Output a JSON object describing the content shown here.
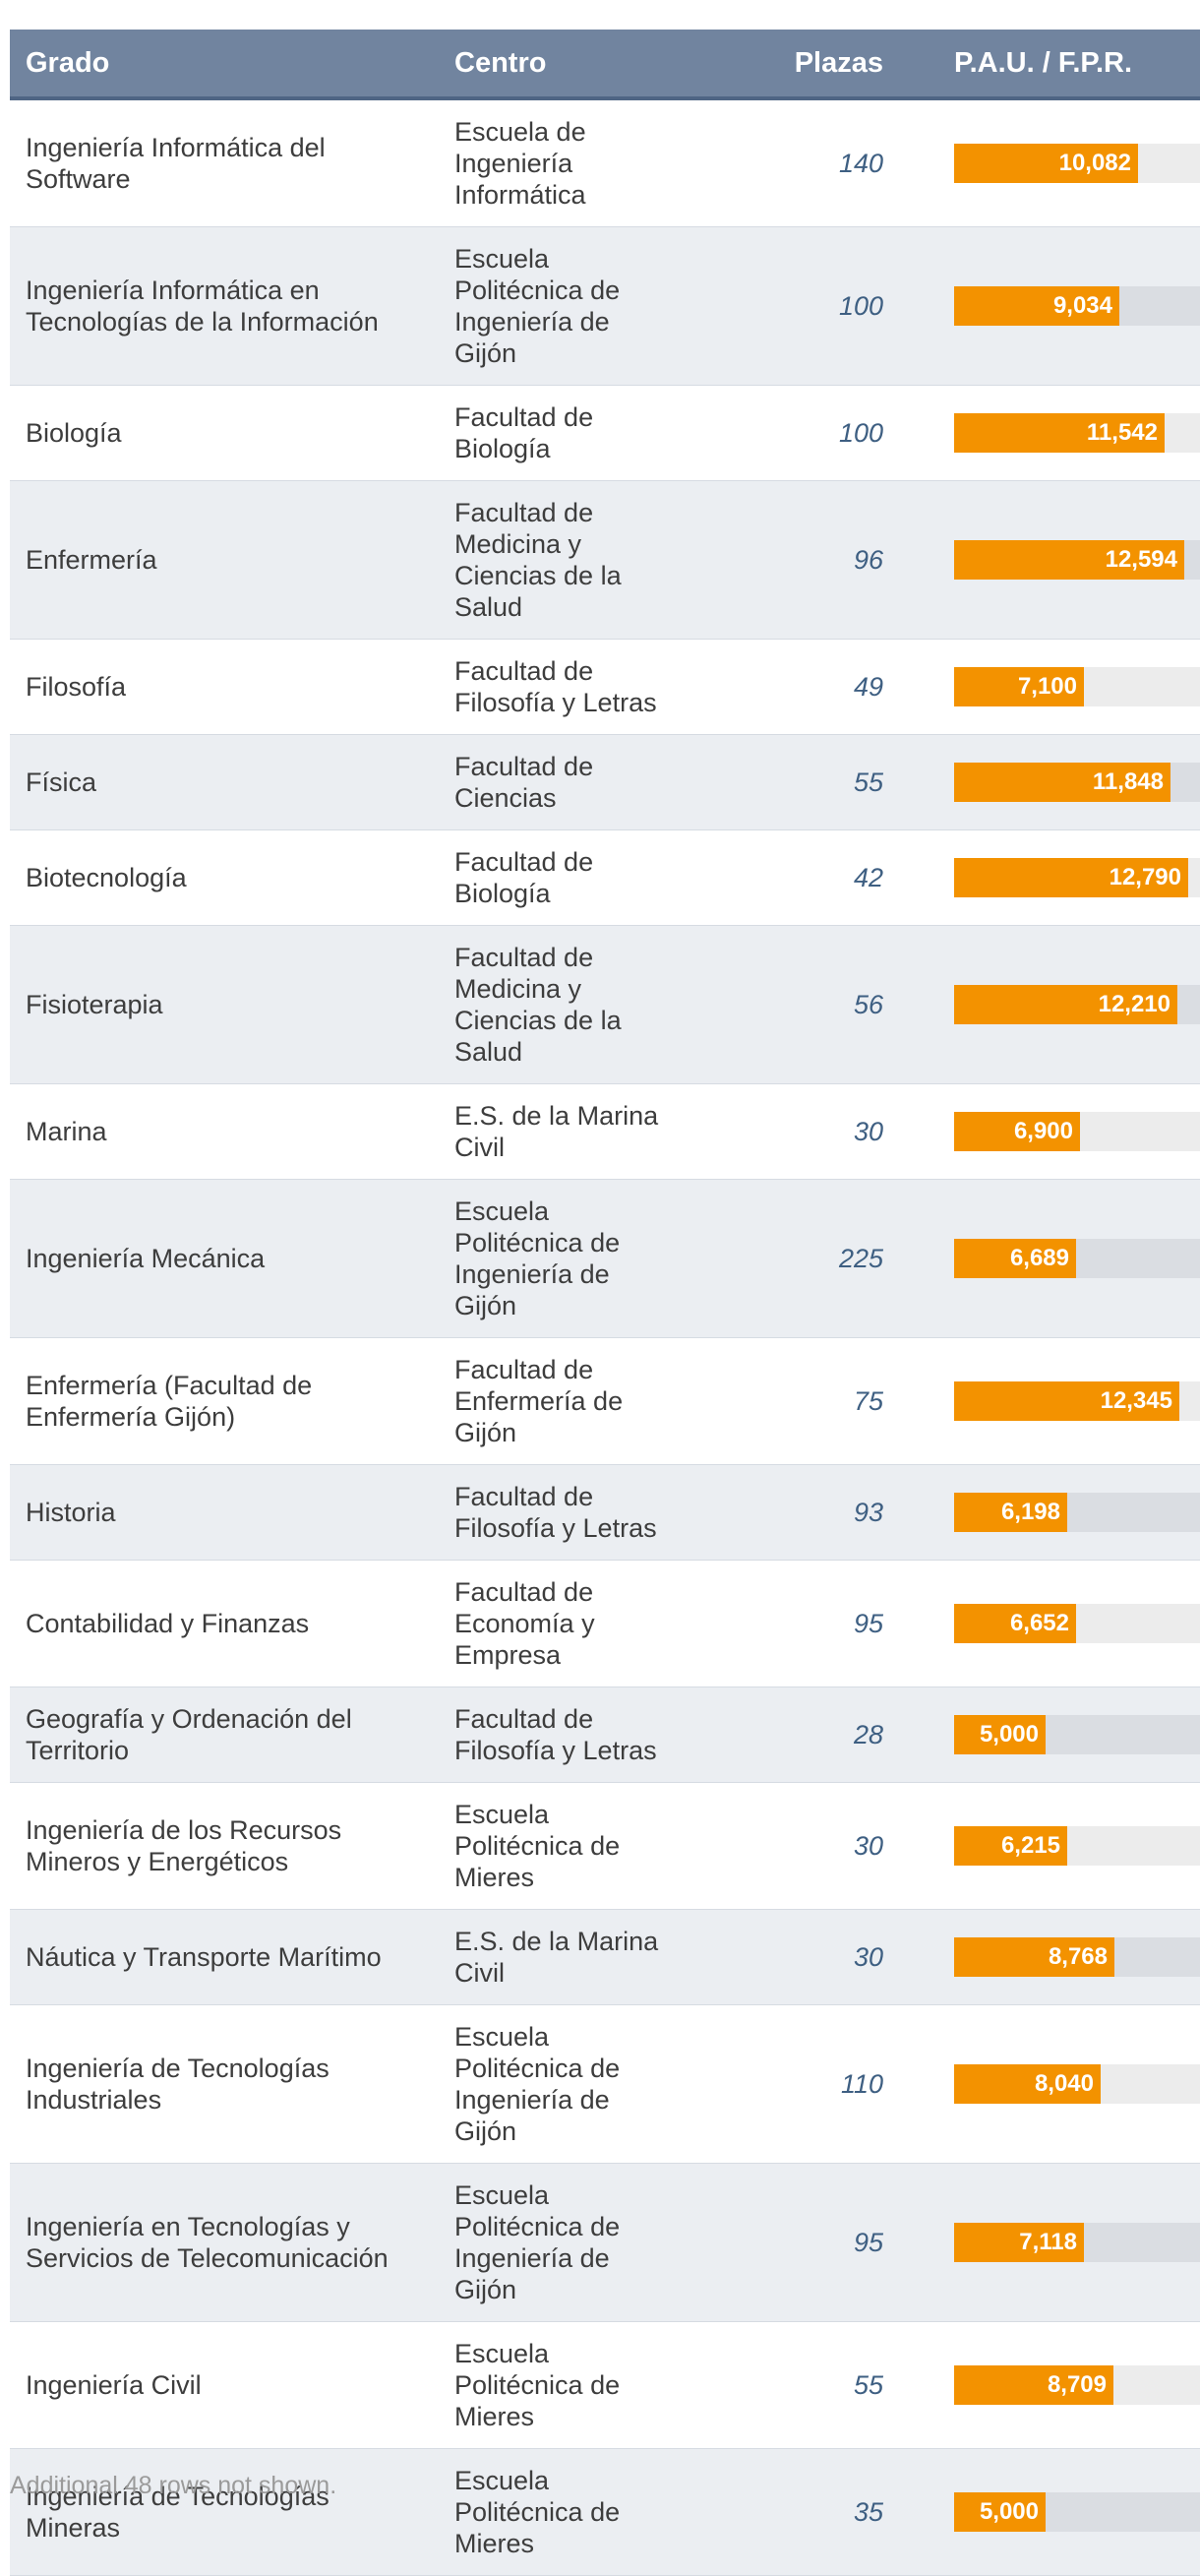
{
  "columns": {
    "grado": "Grado",
    "centro": "Centro",
    "plazas": "Plazas",
    "pau": "P.A.U. / F.P.R."
  },
  "footnote": "Additional 48 rows not shown.",
  "chart_data": {
    "type": "table",
    "bar_column": "P.A.U. / F.P.R.",
    "bar_range": [
      0,
      14
    ],
    "colors": {
      "bar": "#f39200",
      "header": "#71849f",
      "plazas_text": "#3e5f82"
    },
    "rows": [
      {
        "grado": "Ingeniería Informática del Software",
        "centro": "Escuela de Ingeniería Informática",
        "plazas": "140",
        "pau_label": "10,082",
        "pau": 10.082
      },
      {
        "grado": "Ingeniería Informática en Tecnologías de la Información",
        "centro": "Escuela Politécnica de Ingeniería de Gijón",
        "plazas": "100",
        "pau_label": "9,034",
        "pau": 9.034
      },
      {
        "grado": "Biología",
        "centro": "Facultad de Biología",
        "plazas": "100",
        "pau_label": "11,542",
        "pau": 11.542
      },
      {
        "grado": "Enfermería",
        "centro": "Facultad de Medicina y Ciencias de la Salud",
        "plazas": "96",
        "pau_label": "12,594",
        "pau": 12.594
      },
      {
        "grado": "Filosofía",
        "centro": "Facultad de Filosofía y Letras",
        "plazas": "49",
        "pau_label": "7,100",
        "pau": 7.1
      },
      {
        "grado": "Física",
        "centro": "Facultad de Ciencias",
        "plazas": "55",
        "pau_label": "11,848",
        "pau": 11.848
      },
      {
        "grado": "Biotecnología",
        "centro": "Facultad de Biología",
        "plazas": "42",
        "pau_label": "12,790",
        "pau": 12.79
      },
      {
        "grado": "Fisioterapia",
        "centro": "Facultad de Medicina y Ciencias de la Salud",
        "plazas": "56",
        "pau_label": "12,210",
        "pau": 12.21
      },
      {
        "grado": "Marina",
        "centro": "E.S. de la Marina Civil",
        "plazas": "30",
        "pau_label": "6,900",
        "pau": 6.9
      },
      {
        "grado": "Ingeniería Mecánica",
        "centro": "Escuela Politécnica de Ingeniería de Gijón",
        "plazas": "225",
        "pau_label": "6,689",
        "pau": 6.689
      },
      {
        "grado": "Enfermería (Facultad de Enfermería Gijón)",
        "centro": "Facultad de Enfermería de Gijón",
        "plazas": "75",
        "pau_label": "12,345",
        "pau": 12.345
      },
      {
        "grado": "Historia",
        "centro": "Facultad de Filosofía y Letras",
        "plazas": "93",
        "pau_label": "6,198",
        "pau": 6.198
      },
      {
        "grado": "Contabilidad y Finanzas",
        "centro": "Facultad de Economía y Empresa",
        "plazas": "95",
        "pau_label": "6,652",
        "pau": 6.652
      },
      {
        "grado": "Geografía y Ordenación del Territorio",
        "centro": "Facultad de Filosofía y Letras",
        "plazas": "28",
        "pau_label": "5,000",
        "pau": 5.0
      },
      {
        "grado": "Ingeniería de los Recursos Mineros y Energéticos",
        "centro": "Escuela Politécnica de Mieres",
        "plazas": "30",
        "pau_label": "6,215",
        "pau": 6.215
      },
      {
        "grado": "Náutica y Transporte Marítimo",
        "centro": "E.S. de la Marina Civil",
        "plazas": "30",
        "pau_label": "8,768",
        "pau": 8.768
      },
      {
        "grado": "Ingeniería de Tecnologías Industriales",
        "centro": "Escuela Politécnica de Ingeniería de Gijón",
        "plazas": "110",
        "pau_label": "8,040",
        "pau": 8.04
      },
      {
        "grado": "Ingeniería en Tecnologías y Servicios de Telecomunicación",
        "centro": "Escuela Politécnica de Ingeniería de Gijón",
        "plazas": "95",
        "pau_label": "7,118",
        "pau": 7.118
      },
      {
        "grado": "Ingeniería Civil",
        "centro": "Escuela Politécnica de Mieres",
        "plazas": "55",
        "pau_label": "8,709",
        "pau": 8.709
      },
      {
        "grado": "Ingeniería de Tecnologías Mineras",
        "centro": "Escuela Politécnica de Mieres",
        "plazas": "35",
        "pau_label": "5,000",
        "pau": 5.0
      }
    ]
  }
}
